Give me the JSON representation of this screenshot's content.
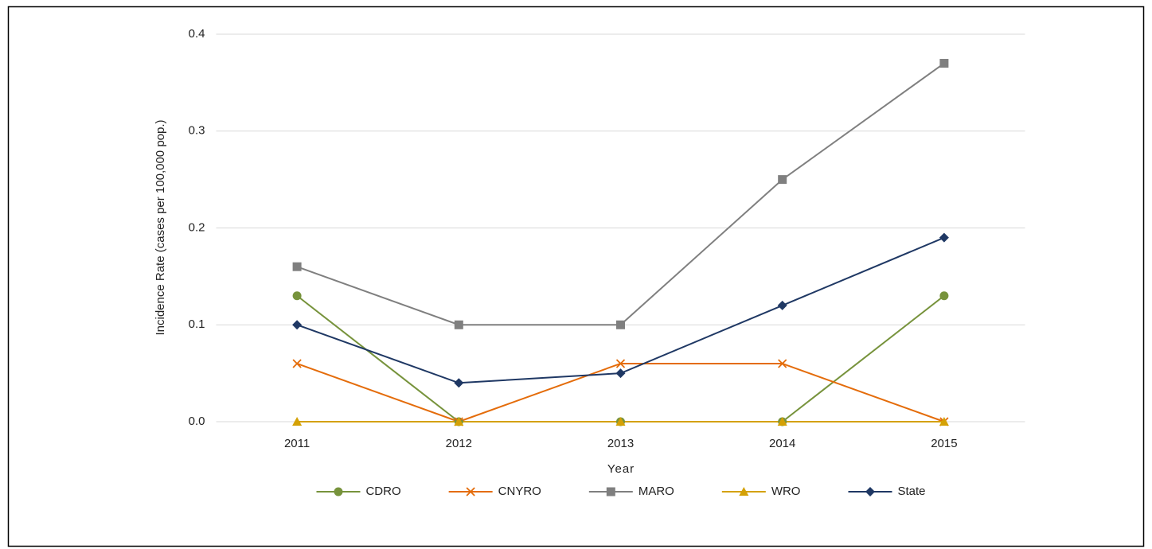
{
  "chart_data": {
    "type": "line",
    "xlabel": "Year",
    "ylabel": "Incidence Rate (cases per 100,000 pop.)",
    "categories": [
      "2011",
      "2012",
      "2013",
      "2014",
      "2015"
    ],
    "ylim": [
      0,
      0.4
    ],
    "yticks": [
      {
        "value": 0,
        "label": "0.0"
      },
      0.1,
      0.2,
      0.3,
      0.4
    ],
    "grid": true,
    "legend": "bottom",
    "series": [
      {
        "name": "CDRO",
        "color": "#77933c",
        "marker": "circle",
        "values": [
          0.13,
          0,
          0,
          0,
          0.13
        ]
      },
      {
        "name": "CNYRO",
        "color": "#e46c0a",
        "marker": "cross",
        "values": [
          0.06,
          0,
          0.06,
          0.06,
          0
        ]
      },
      {
        "name": "MARO",
        "color": "#7f7f7f",
        "marker": "square",
        "values": [
          0.16,
          0.1,
          0.1,
          0.25,
          0.37
        ]
      },
      {
        "name": "WRO",
        "color": "#d4a106",
        "marker": "triangle",
        "values": [
          0,
          0,
          0,
          0,
          0
        ]
      },
      {
        "name": "State",
        "color": "#1f3864",
        "marker": "diamond",
        "values": [
          0.1,
          0.04,
          0.05,
          0.12,
          0.19
        ]
      }
    ]
  }
}
